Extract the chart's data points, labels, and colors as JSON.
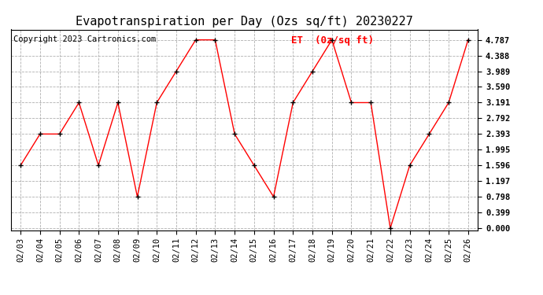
{
  "title": "Evapotranspiration per Day (Ozs sq/ft) 20230227",
  "copyright_text": "Copyright 2023 Cartronics.com",
  "legend_label": "ET  (0z/sq ft)",
  "dates": [
    "02/03",
    "02/04",
    "02/05",
    "02/06",
    "02/07",
    "02/08",
    "02/09",
    "02/10",
    "02/11",
    "02/12",
    "02/13",
    "02/14",
    "02/15",
    "02/16",
    "02/17",
    "02/18",
    "02/19",
    "02/20",
    "02/21",
    "02/22",
    "02/23",
    "02/24",
    "02/25",
    "02/26"
  ],
  "values": [
    1.596,
    2.393,
    2.393,
    3.191,
    1.596,
    3.191,
    0.798,
    3.191,
    3.989,
    4.787,
    4.787,
    2.393,
    1.596,
    0.798,
    3.191,
    3.989,
    4.787,
    3.191,
    3.191,
    0.0,
    1.596,
    2.393,
    3.191,
    4.787
  ],
  "yticks": [
    0.0,
    0.399,
    0.798,
    1.197,
    1.596,
    1.995,
    2.393,
    2.792,
    3.191,
    3.59,
    3.989,
    4.388,
    4.787
  ],
  "line_color": "red",
  "marker_color": "black",
  "background_color": "#ffffff",
  "grid_color": "#b0b0b0",
  "title_fontsize": 11,
  "copyright_fontsize": 7.5,
  "legend_fontsize": 9,
  "tick_fontsize": 7.5,
  "ylim": [
    -0.05,
    5.05
  ]
}
